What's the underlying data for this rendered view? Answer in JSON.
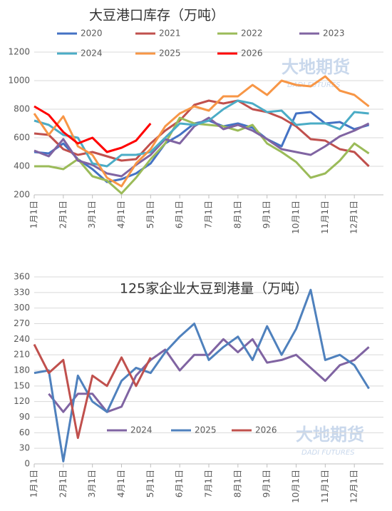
{
  "chart_data": [
    {
      "type": "line",
      "title": "大豆港口库存（万吨）",
      "watermark": "大地期货",
      "watermark_sub": "DADI FUTURES",
      "categories": [
        "1月1日",
        null,
        "2月1日",
        null,
        "3月1日",
        null,
        "4月1日",
        null,
        "5月1日",
        null,
        "6月1日",
        null,
        "7月1日",
        null,
        "8月1日",
        null,
        "9月1日",
        null,
        "10月1日",
        null,
        "11月1日",
        null,
        "12月1日",
        null
      ],
      "ylim": [
        200,
        1200
      ],
      "yticks": [
        200,
        400,
        600,
        800,
        1000,
        1200
      ],
      "grid": true,
      "series": [
        {
          "name": "2020",
          "color": "#4472c4",
          "values": [
            500,
            490,
            560,
            450,
            380,
            290,
            310,
            350,
            420,
            560,
            620,
            700,
            720,
            680,
            700,
            670,
            590,
            540,
            770,
            780,
            700,
            710,
            660,
            690
          ]
        },
        {
          "name": "2021",
          "color": "#c0504d",
          "values": [
            630,
            620,
            520,
            480,
            500,
            470,
            440,
            450,
            560,
            650,
            720,
            830,
            860,
            840,
            860,
            800,
            780,
            740,
            680,
            590,
            580,
            520,
            500,
            400
          ]
        },
        {
          "name": "2022",
          "color": "#9bbb59",
          "values": [
            400,
            400,
            380,
            450,
            330,
            300,
            210,
            320,
            450,
            560,
            740,
            700,
            690,
            680,
            650,
            690,
            560,
            500,
            430,
            320,
            350,
            440,
            560,
            490
          ]
        },
        {
          "name": "2023",
          "color": "#8064a2",
          "values": [
            510,
            470,
            590,
            440,
            410,
            350,
            330,
            410,
            480,
            590,
            560,
            680,
            740,
            660,
            690,
            650,
            590,
            520,
            500,
            480,
            540,
            610,
            650,
            700
          ]
        },
        {
          "name": "2024",
          "color": "#4bacc6",
          "values": [
            720,
            690,
            620,
            600,
            420,
            400,
            480,
            480,
            500,
            600,
            700,
            690,
            720,
            800,
            860,
            840,
            780,
            790,
            690,
            700,
            700,
            660,
            780,
            770
          ]
        },
        {
          "name": "2025",
          "color": "#f79646",
          "values": [
            770,
            620,
            750,
            540,
            480,
            320,
            260,
            420,
            520,
            680,
            770,
            820,
            790,
            890,
            890,
            970,
            900,
            1000,
            970,
            960,
            1030,
            930,
            900,
            820
          ]
        },
        {
          "name": "2026",
          "color": "#ff0000",
          "values": [
            820,
            760,
            640,
            560,
            600,
            500,
            530,
            580,
            700,
            null,
            null,
            null,
            null,
            null,
            null,
            null,
            null,
            null,
            null,
            null,
            null,
            null,
            null,
            null
          ]
        }
      ]
    },
    {
      "type": "line",
      "title": "125家企业大豆到港量（万吨）",
      "watermark": "大地期货",
      "watermark_sub": "DADI FUTURES",
      "categories": [
        "1月1日",
        null,
        "2月1日",
        null,
        "3月1日",
        null,
        "4月1日",
        null,
        "5月1日",
        null,
        "6月1日",
        null,
        "7月1日",
        null,
        "8月1日",
        null,
        "9月1日",
        null,
        "10月1日",
        null,
        "11月1日",
        null,
        "12月1日",
        null
      ],
      "ylim": [
        0,
        360
      ],
      "yticks": [
        0,
        30,
        60,
        90,
        120,
        150,
        180,
        210,
        240,
        270,
        300,
        330,
        360
      ],
      "grid": true,
      "series": [
        {
          "name": "2024",
          "color": "#8064a2",
          "values": [
            null,
            135,
            100,
            135,
            135,
            100,
            110,
            170,
            200,
            220,
            180,
            210,
            210,
            240,
            215,
            240,
            195,
            200,
            210,
            185,
            160,
            190,
            200,
            225
          ]
        },
        {
          "name": "2025",
          "color": "#4f81bd",
          "values": [
            175,
            180,
            5,
            170,
            120,
            100,
            160,
            185,
            175,
            215,
            245,
            270,
            200,
            225,
            245,
            200,
            265,
            210,
            260,
            335,
            200,
            210,
            190,
            145
          ]
        },
        {
          "name": "2026",
          "color": "#c0504d",
          "values": [
            230,
            175,
            200,
            50,
            170,
            150,
            205,
            150,
            205,
            null,
            null,
            null,
            null,
            null,
            null,
            null,
            null,
            null,
            null,
            null,
            null,
            null,
            null,
            null
          ]
        }
      ]
    }
  ]
}
